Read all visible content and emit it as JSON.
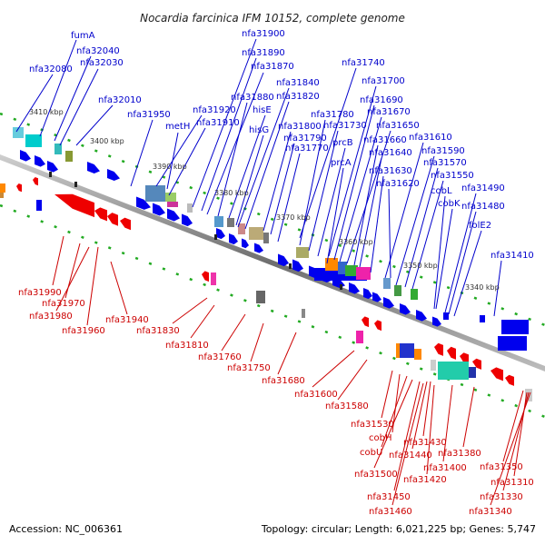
{
  "title": "Nocardia farcinica IFM 10152, complete genome",
  "accession": "Accession: NC_006361",
  "topology": "Topology: circular; Length: 6,021,225 bp; Genes: 5,747",
  "ticks": [
    "3410 kbp",
    "3400 kbp",
    "3390 kbp",
    "3380 kbp",
    "3370 kbp",
    "3360 kbp",
    "3350 kbp",
    "3340 kbp"
  ],
  "top_labels": [
    "fumA",
    "nfa32040",
    "nfa32030",
    "nfa32080",
    "nfa32010",
    "nfa31950",
    "nfa31920",
    "nfa31910",
    "metH",
    "nfa31900",
    "nfa31890",
    "nfa31870",
    "nfa31880",
    "hisE",
    "hisG",
    "nfa31840",
    "nfa31820",
    "nfa31800",
    "nfa31790",
    "nfa31780",
    "nfa31770",
    "nfa31740",
    "nfa31700",
    "nfa31690",
    "nfa31670",
    "nfa31730",
    "nfa31650",
    "prcB",
    "nfa31660",
    "nfa31640",
    "prcA",
    "nfa31630",
    "nfa31620",
    "nfa31610",
    "nfa31590",
    "nfa31570",
    "nfa31550",
    "cobL",
    "cobK",
    "nfa31490",
    "nfa31480",
    "folE2",
    "nfa31410"
  ],
  "bottom_labels": [
    "nfa31990",
    "nfa31970",
    "nfa31980",
    "nfa31960",
    "nfa31940",
    "nfa31830",
    "nfa31810",
    "nfa31760",
    "nfa31750",
    "nfa31680",
    "nfa31600",
    "nfa31580",
    "nfa31530",
    "cobH",
    "cobU",
    "nfa31500",
    "nfa31450",
    "nfa31460",
    "nfa31430",
    "nfa31440",
    "nfa31420",
    "nfa31400",
    "nfa31380",
    "nfa31350",
    "nfa31310",
    "nfa31330",
    "nfa31340"
  ],
  "colors": {
    "top_label": "#0000cc",
    "bottom_label": "#cc0000",
    "forward_gene": "#0000ee",
    "reverse_gene": "#ee0000",
    "backbone": "#888888"
  }
}
